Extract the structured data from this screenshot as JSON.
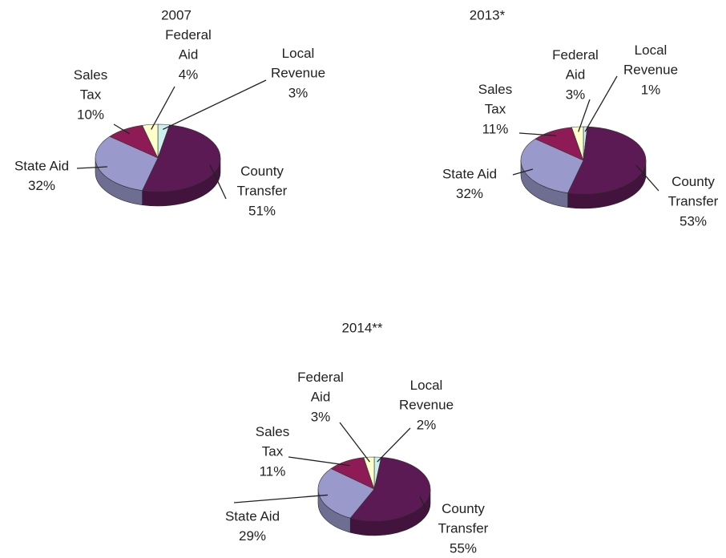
{
  "chart_data": [
    {
      "type": "pie",
      "title": "2007",
      "categories": [
        "Local Revenue",
        "County Transfer",
        "State Aid",
        "Sales Tax",
        "Federal Aid"
      ],
      "values": [
        3,
        51,
        32,
        10,
        4
      ],
      "value_labels": [
        "3%",
        "51%",
        "32%",
        "10%",
        "4%"
      ],
      "colors": [
        "#ccf0f0",
        "#5c1a55",
        "#9999cc",
        "#8e1b55",
        "#ffffcc"
      ]
    },
    {
      "type": "pie",
      "title": "2013*",
      "categories": [
        "Local Revenue",
        "County Transfer",
        "State Aid",
        "Sales Tax",
        "Federal Aid"
      ],
      "values": [
        1,
        53,
        32,
        11,
        3
      ],
      "value_labels": [
        "1%",
        "53%",
        "32%",
        "11%",
        "3%"
      ],
      "colors": [
        "#ccf0f0",
        "#5c1a55",
        "#9999cc",
        "#8e1b55",
        "#ffffcc"
      ]
    },
    {
      "type": "pie",
      "title": "2014**",
      "categories": [
        "Local Revenue",
        "County Transfer",
        "State Aid",
        "Sales Tax",
        "Federal Aid"
      ],
      "values": [
        2,
        55,
        29,
        11,
        3
      ],
      "value_labels": [
        "2%",
        "55%",
        "29%",
        "11%",
        "3%"
      ],
      "colors": [
        "#ccf0f0",
        "#5c1a55",
        "#9999cc",
        "#8e1b55",
        "#ffffcc"
      ]
    }
  ]
}
